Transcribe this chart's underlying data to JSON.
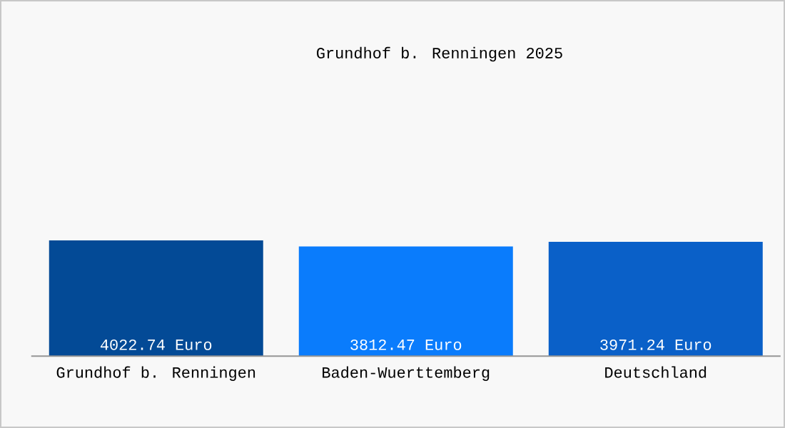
{
  "chart_data": {
    "type": "bar",
    "title": "Grundhof b. Renningen 2025",
    "categories": [
      "Grundhof b. Renningen",
      "Baden-Wuerttemberg",
      "Deutschland"
    ],
    "values": [
      4022.74,
      3812.47,
      3971.24
    ],
    "colors": [
      "#034a96",
      "#0a7cfc",
      "#0a60c8"
    ],
    "value_labels": [
      "4022.74 Euro",
      "3812.47 Euro",
      "3971.24 Euro"
    ]
  }
}
